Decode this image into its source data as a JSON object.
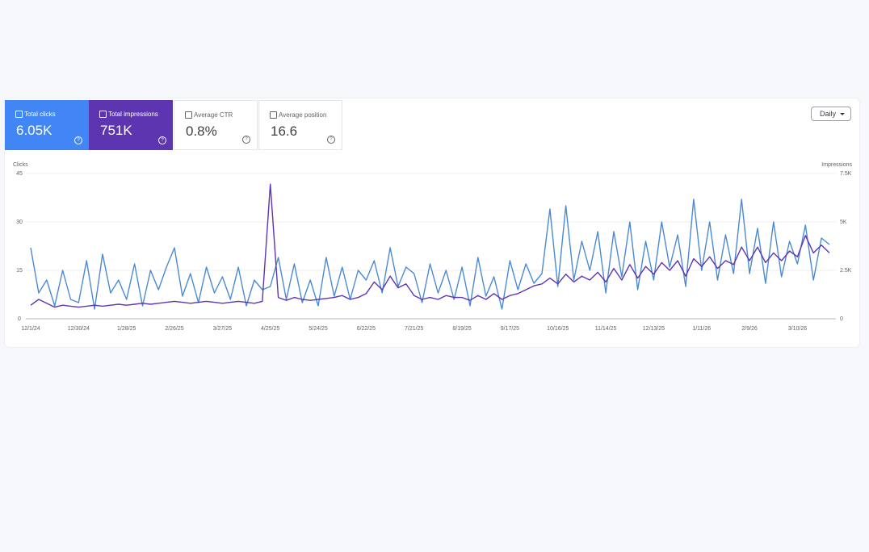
{
  "cards": [
    {
      "label": "Total clicks",
      "value": "6.05K"
    },
    {
      "label": "Total impressions",
      "value": "751K"
    },
    {
      "label": "Average CTR",
      "value": "0.8%"
    },
    {
      "label": "Average position",
      "value": "16.6"
    }
  ],
  "controls": {
    "granularity": "Daily"
  },
  "chart_data": {
    "type": "line",
    "y_label": "Clicks",
    "y2_label": "Impressions",
    "categories": [
      "12/1/24",
      null,
      null,
      null,
      null,
      null,
      "12/30/24",
      null,
      null,
      null,
      null,
      null,
      "1/28/25",
      null,
      null,
      null,
      null,
      null,
      "2/26/25",
      null,
      null,
      null,
      null,
      null,
      "3/27/25",
      null,
      null,
      null,
      null,
      null,
      "4/25/25",
      null,
      null,
      null,
      null,
      null,
      "5/24/25",
      null,
      null,
      null,
      null,
      null,
      "6/22/25",
      null,
      null,
      null,
      null,
      null,
      "7/21/25",
      null,
      null,
      null,
      null,
      null,
      "8/19/25",
      null,
      null,
      null,
      null,
      null,
      "9/17/25",
      null,
      null,
      null,
      null,
      null,
      "10/16/25",
      null,
      null,
      null,
      null,
      null,
      "11/14/25",
      null,
      null,
      null,
      null,
      null,
      "12/13/25",
      null,
      null,
      null,
      null,
      null,
      "1/11/26",
      null,
      null,
      null,
      null,
      null,
      "2/9/26",
      null,
      null,
      null,
      null,
      null,
      "3/10/26",
      null,
      null,
      null,
      null
    ],
    "series": [
      {
        "name": "Clicks",
        "color": "#4a8ad4",
        "values": [
          22,
          8,
          12,
          4,
          15,
          6,
          5,
          18,
          3,
          20,
          8,
          12,
          6,
          17,
          4,
          15,
          9,
          16,
          22,
          7,
          14,
          5,
          16,
          8,
          13,
          6,
          16,
          4,
          12,
          9,
          10,
          19,
          6,
          17,
          5,
          12,
          4,
          19,
          7,
          16,
          6,
          15,
          12,
          18,
          8,
          22,
          10,
          16,
          14,
          5,
          17,
          8,
          15,
          6,
          16,
          4,
          19,
          7,
          13,
          3,
          18,
          9,
          17,
          11,
          14,
          34,
          10,
          35,
          12,
          24,
          15,
          27,
          8,
          27,
          13,
          30,
          9,
          24,
          12,
          30,
          16,
          26,
          10,
          37,
          15,
          30,
          12,
          26,
          14,
          37,
          14,
          28,
          11,
          30,
          13,
          24,
          17,
          29,
          12,
          25,
          23
        ]
      },
      {
        "name": "Impressions",
        "color": "#5e35b1",
        "axis": "y2",
        "values": [
          700,
          1000,
          800,
          600,
          700,
          650,
          600,
          650,
          700,
          650,
          700,
          750,
          700,
          750,
          800,
          750,
          800,
          850,
          900,
          850,
          800,
          850,
          900,
          850,
          800,
          850,
          900,
          850,
          800,
          900,
          6950,
          1100,
          950,
          1100,
          1000,
          950,
          1000,
          1050,
          1100,
          1200,
          1000,
          1100,
          1300,
          1900,
          1500,
          2200,
          1600,
          1800,
          1200,
          1000,
          1100,
          1000,
          1200,
          1100,
          1100,
          950,
          1200,
          1000,
          1300,
          1000,
          1200,
          1300,
          1500,
          1700,
          1800,
          2100,
          1800,
          2300,
          1900,
          2200,
          2000,
          2400,
          1900,
          2600,
          2000,
          2800,
          2100,
          2700,
          2300,
          2900,
          2500,
          3000,
          2200,
          3100,
          2700,
          3200,
          2600,
          3000,
          2800,
          3700,
          3000,
          3700,
          2900,
          3400,
          3000,
          3500,
          3200,
          4300,
          3400,
          3800,
          3400
        ]
      }
    ],
    "ylim": [
      0,
      45
    ],
    "yticks": [
      0,
      15,
      30,
      45
    ],
    "y2lim": [
      0,
      7500
    ],
    "y2ticks": [
      0,
      {
        "value": 2500,
        "label": "2.5K"
      },
      {
        "value": 5000,
        "label": "5K"
      },
      {
        "value": 7500,
        "label": "7.5K"
      }
    ],
    "grid": true
  }
}
